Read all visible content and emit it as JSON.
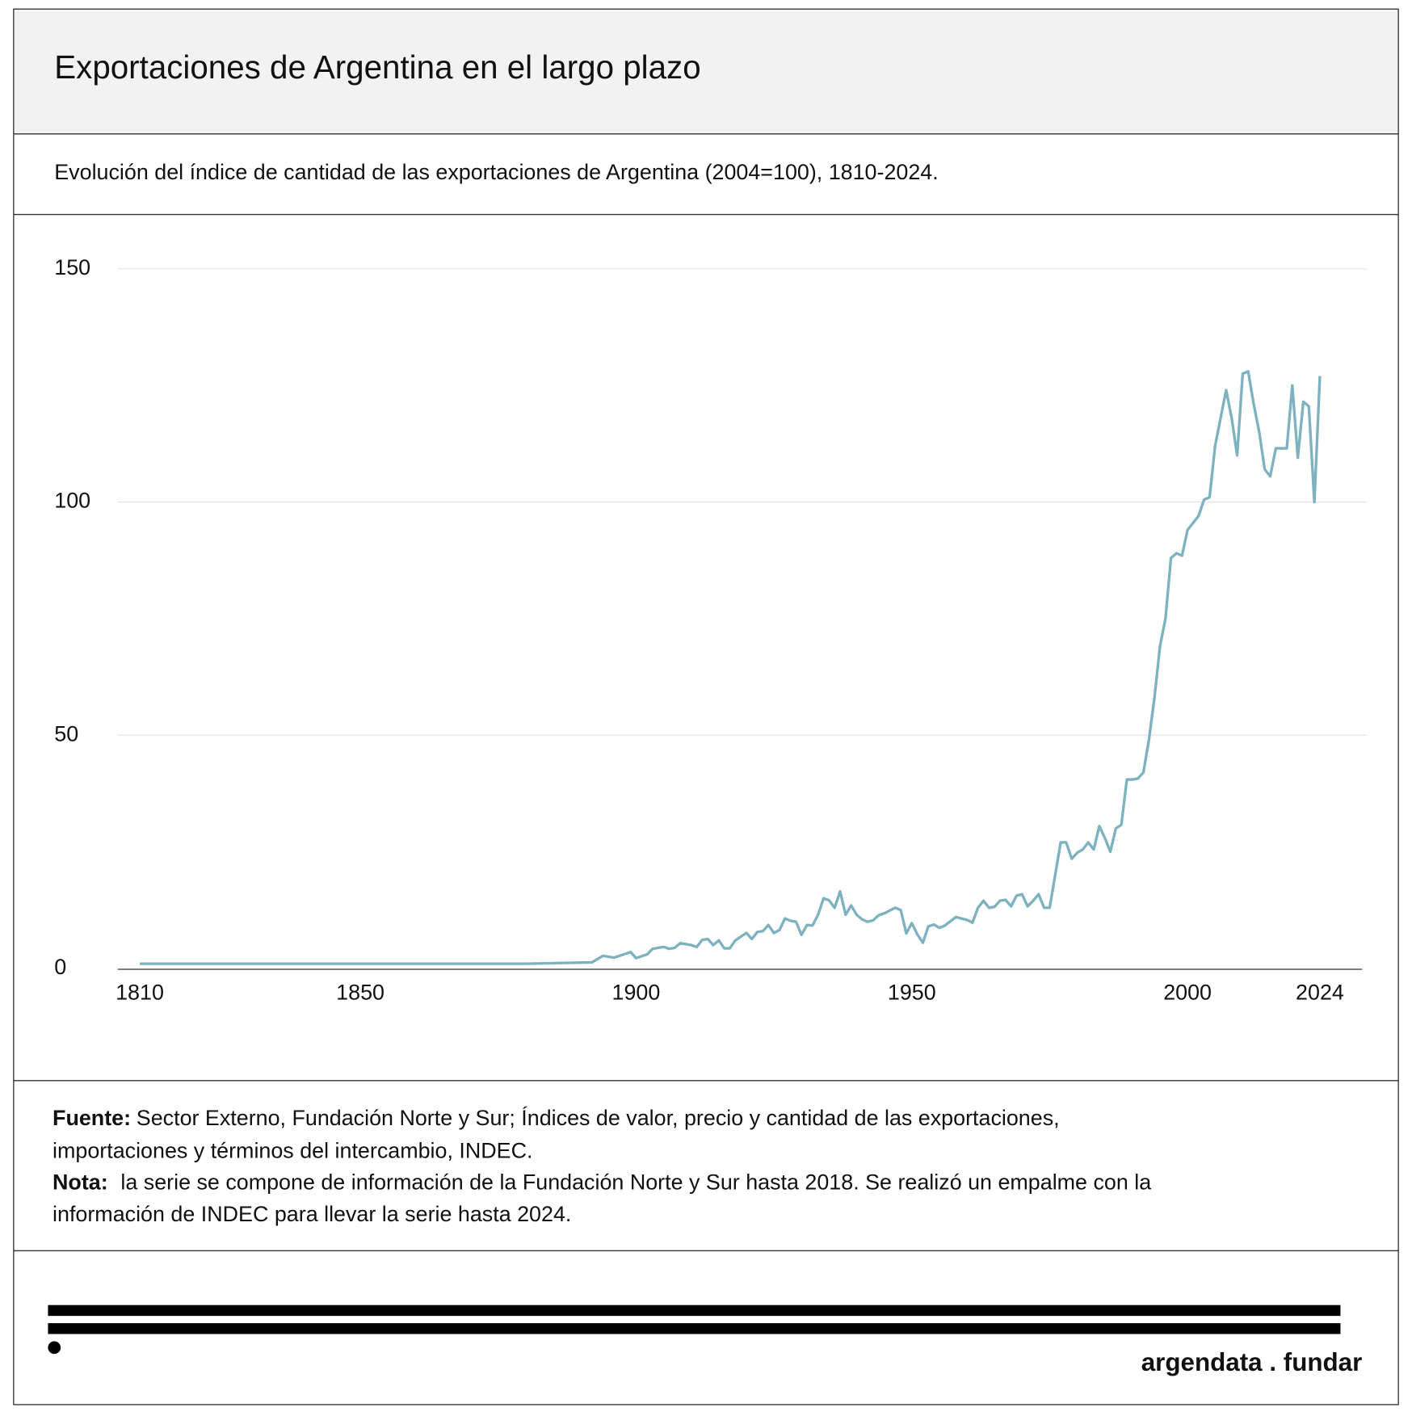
{
  "chart_data": {
    "type": "line",
    "title": "Exportaciones de Argentina en el largo plazo",
    "subtitle": "Evolución del índice de cantidad de las exportaciones de Argentina (2004=100), 1810-2024.",
    "color": "#7fb2c1",
    "x": [
      1810,
      1880,
      1892,
      1894,
      1896,
      1899,
      1900,
      1902,
      1903,
      1905,
      1906,
      1907,
      1908,
      1910,
      1911,
      1912,
      1913,
      1914,
      1915,
      1916,
      1917,
      1918,
      1920,
      1921,
      1922,
      1923,
      1924,
      1925,
      1926,
      1927,
      1928,
      1929,
      1930,
      1931,
      1932,
      1933,
      1934,
      1935,
      1936,
      1937,
      1938,
      1939,
      1940,
      1941,
      1942,
      1943,
      1944,
      1945,
      1947,
      1948,
      1949,
      1950,
      1951,
      1952,
      1953,
      1954,
      1955,
      1956,
      1958,
      1959,
      1960,
      1961,
      1962,
      1963,
      1964,
      1965,
      1966,
      1967,
      1968,
      1969,
      1970,
      1971,
      1972,
      1973,
      1974,
      1975,
      1976,
      1977,
      1978,
      1979,
      1980,
      1981,
      1982,
      1983,
      1984,
      1985,
      1986,
      1987,
      1988,
      1989,
      1990,
      1991,
      1992,
      1993,
      1994,
      1995,
      1996,
      1997,
      1998,
      1999,
      2000,
      2001,
      2002,
      2003,
      2004,
      2005,
      2006,
      2007,
      2008,
      2009,
      2010,
      2011,
      2012,
      2013,
      2014,
      2015,
      2016,
      2017,
      2018,
      2019,
      2020,
      2021,
      2022,
      2023,
      2024
    ],
    "values": [
      1,
      1,
      1.3,
      2.7,
      2.3,
      3.5,
      2.2,
      3,
      4.2,
      4.6,
      4.2,
      4.4,
      5.4,
      5,
      4.6,
      6.1,
      6.3,
      5,
      6,
      4.3,
      4.3,
      6,
      7.6,
      6.3,
      7.8,
      8,
      9.3,
      7.6,
      8.2,
      10.7,
      10.2,
      10,
      7.2,
      9.3,
      9.2,
      11.5,
      15,
      14.6,
      13,
      16.5,
      11.5,
      13.5,
      11.5,
      10.5,
      10,
      10.3,
      11.4,
      11.8,
      13,
      12.5,
      7.5,
      9.7,
      7.3,
      5.5,
      9,
      9.4,
      8.7,
      9.2,
      11,
      10.7,
      10.4,
      9.8,
      13,
      14.5,
      13,
      13.2,
      14.5,
      14.7,
      13.3,
      15.6,
      15.9,
      13.3,
      14.5,
      15.9,
      13,
      13,
      20,
      27,
      27,
      23.5,
      24.8,
      25.5,
      27,
      25.5,
      30.5,
      28,
      25,
      30,
      30.8,
      40.5,
      40.5,
      40.7,
      42,
      49,
      58,
      69,
      75,
      88,
      89,
      88.5,
      94,
      95.5,
      97,
      100.5,
      101,
      112,
      118,
      124,
      118,
      110,
      127.5,
      128,
      121,
      115,
      107,
      105.5,
      111.5,
      111.5,
      111.5,
      125,
      109.5,
      121.5,
      120.5,
      100,
      127
    ],
    "xlim": [
      1806,
      2032
    ],
    "xticks": [
      1810,
      1850,
      1900,
      1950,
      2000,
      2024
    ],
    "ylim": [
      0,
      150
    ],
    "yticks": [
      0,
      50,
      100,
      150
    ],
    "grid": true
  },
  "footer": {
    "source_label": "Fuente:",
    "source_lines": [
      "Sector Externo, Fundación Norte y Sur; Índices de valor, precio y cantidad de las exportaciones,",
      "importaciones y términos del intercambio, INDEC."
    ],
    "note_label": "Nota:",
    "note_lines": [
      "la serie se compone de información de la Fundación Norte y Sur hasta 2018. Se realizó un empalme con la",
      "información de INDEC para llevar la serie hasta 2024."
    ],
    "brand": "argendata . fundar"
  }
}
